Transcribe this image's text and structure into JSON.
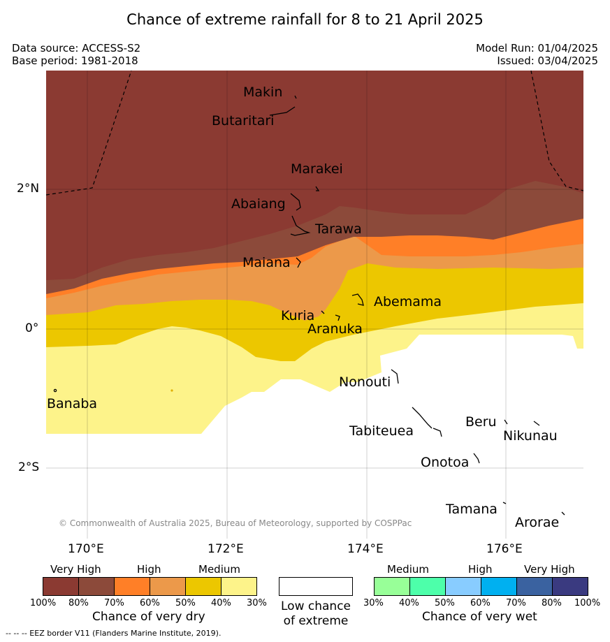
{
  "title": "Chance of extreme rainfall for 8 to 21 April 2025",
  "data_source": "Data source: ACCESS-S2",
  "base_period": "Base period: 1981-2018",
  "model_run": "Model Run: 01/04/2025",
  "issued": "Issued: 03/04/2025",
  "lat_labels": [
    "2°N",
    "0°",
    "2°S"
  ],
  "lon_labels": [
    "170°E",
    "172°E",
    "174°E",
    "176°E"
  ],
  "places": {
    "makin": "Makin",
    "butaritari": "Butaritari",
    "marakei": "Marakei",
    "abaiang": "Abaiang",
    "tarawa": "Tarawa",
    "maiana": "Maiana",
    "abemama": "Abemama",
    "kuria": "Kuria",
    "aranuka": "Aranuka",
    "banaba": "Banaba",
    "nonouti": "Nonouti",
    "tabiteuea": "Tabiteuea",
    "beru": "Beru",
    "nikunau": "Nikunau",
    "onotoa": "Onotoa",
    "tamana": "Tamana",
    "arorae": "Arorae"
  },
  "copyright": "© Commonwealth of Australia 2025, Bureau of Meteorology, supported by COSPPac",
  "legend": {
    "dry": {
      "headings": [
        "Very High",
        "High",
        "Medium"
      ],
      "ticks": [
        "100%",
        "80%",
        "70%",
        "60%",
        "50%",
        "40%",
        "30%"
      ],
      "title": "Chance of very dry",
      "colors": [
        "#8b3a32",
        "#8c4a3a",
        "#ff7f27",
        "#ec994a",
        "#ecc700",
        "#fdf38a"
      ]
    },
    "low": {
      "line1": "Low chance",
      "line2": "of extreme",
      "color": "#ffffff"
    },
    "wet": {
      "headings": [
        "Medium",
        "High",
        "Very High"
      ],
      "ticks": [
        "30%",
        "40%",
        "50%",
        "60%",
        "70%",
        "80%",
        "100%"
      ],
      "title": "Chance of very wet",
      "colors": [
        "#98ff98",
        "#4dffaa",
        "#88ccff",
        "#00b0f0",
        "#3a62a0",
        "#3a3a80"
      ]
    }
  },
  "footnote": "--  --  -- EEZ border V11 (Flanders Marine Institute, 2019)."
}
